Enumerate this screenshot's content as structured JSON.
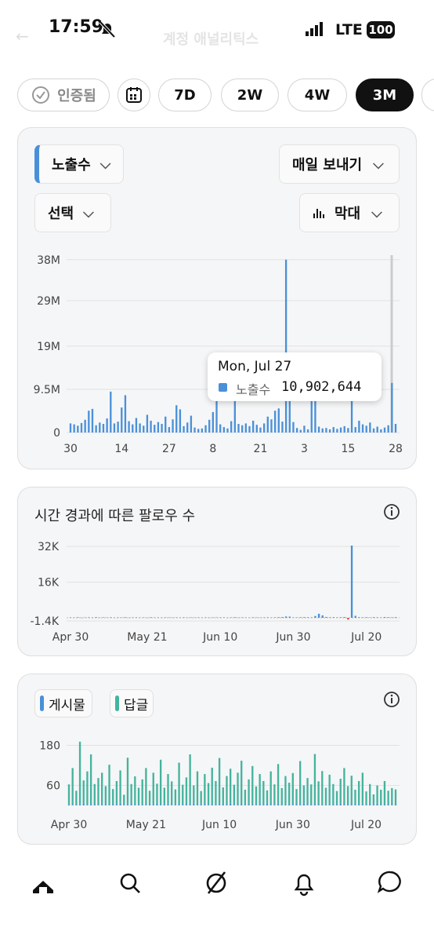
{
  "status_bar": {
    "time": "17:59",
    "network": "LTE",
    "battery": "100"
  },
  "header": {
    "title": "계정 애널리틱스"
  },
  "filters": {
    "verified": "인증됨",
    "ranges": [
      "7D",
      "2W",
      "4W",
      "3M"
    ]
  },
  "controls": {
    "metric": "노출수",
    "export": "매일 보내기",
    "select": "선택",
    "chart_kind": "막대"
  },
  "tooltip": {
    "date": "Mon, Jul 27",
    "series": "노출수",
    "value": "10,902,644"
  },
  "chart_data": [
    {
      "type": "bar",
      "grid": true,
      "categories": [
        "30",
        null,
        null,
        null,
        null,
        null,
        null,
        null,
        null,
        null,
        null,
        null,
        null,
        null,
        "14",
        null,
        null,
        null,
        null,
        null,
        null,
        null,
        null,
        null,
        null,
        null,
        null,
        "27",
        null,
        null,
        null,
        null,
        null,
        null,
        null,
        null,
        null,
        null,
        null,
        "8",
        null,
        null,
        null,
        null,
        null,
        null,
        null,
        null,
        null,
        null,
        null,
        null,
        "21",
        null,
        null,
        null,
        null,
        null,
        null,
        null,
        null,
        null,
        null,
        null,
        "3",
        null,
        null,
        null,
        null,
        null,
        null,
        null,
        null,
        null,
        null,
        null,
        "15",
        null,
        null,
        null,
        null,
        null,
        null,
        null,
        null,
        null,
        null,
        null,
        null,
        "28"
      ],
      "series": [
        {
          "name": "노출수",
          "color": "#4a90d9",
          "values": [
            2000000,
            1800000,
            1500000,
            2100000,
            2800000,
            4800000,
            5200000,
            1600000,
            2200000,
            1900000,
            3100000,
            9000000,
            2000000,
            2400000,
            5500000,
            8200000,
            2500000,
            1800000,
            3200000,
            2000000,
            1500000,
            3900000,
            2600000,
            1700000,
            2300000,
            1900000,
            3500000,
            1200000,
            2900000,
            6000000,
            5100000,
            1400000,
            2200000,
            3700000,
            1100000,
            800000,
            900000,
            1600000,
            2800000,
            4500000,
            7200000,
            1800000,
            1200000,
            900000,
            2500000,
            9000000,
            1900000,
            1600000,
            2000000,
            1400000,
            2600000,
            1700000,
            1100000,
            2000000,
            3500000,
            2900000,
            4800000,
            5300000,
            2400000,
            38000000,
            8100000,
            2300000,
            1000000,
            600000,
            1500000,
            700000,
            7500000,
            6900000,
            1300000,
            900000,
            1000000,
            700000,
            1200000,
            800000,
            1100000,
            1400000,
            1000000,
            9300000,
            1200000,
            2600000,
            1800000,
            1500000,
            2200000,
            900000,
            1300000,
            700000,
            1100000,
            1600000,
            10902644,
            1900000
          ]
        }
      ],
      "ylim": [
        0,
        39000000
      ],
      "yticks": [
        0,
        {
          "value": 9500000,
          "label": "9.5M"
        },
        {
          "value": 19000000,
          "label": "19M"
        },
        {
          "value": 29000000,
          "label": "29M"
        },
        {
          "value": 38000000,
          "label": "38M"
        }
      ]
    },
    {
      "type": "bar",
      "title": "시간 경과에 따른 팔로우 수",
      "grid": true,
      "negative_color": "#e0443a",
      "categories": [
        "Apr 30",
        null,
        null,
        null,
        null,
        null,
        null,
        null,
        null,
        null,
        null,
        null,
        null,
        null,
        null,
        null,
        null,
        null,
        null,
        null,
        null,
        "May 21",
        null,
        null,
        null,
        null,
        null,
        null,
        null,
        null,
        null,
        null,
        null,
        null,
        null,
        null,
        null,
        null,
        null,
        null,
        null,
        "Jun 10",
        null,
        null,
        null,
        null,
        null,
        null,
        null,
        null,
        null,
        null,
        null,
        null,
        null,
        null,
        null,
        null,
        null,
        null,
        null,
        "Jun 30",
        null,
        null,
        null,
        null,
        null,
        null,
        null,
        null,
        null,
        null,
        null,
        null,
        null,
        null,
        null,
        null,
        null,
        null,
        null,
        "Jul 20",
        null,
        null,
        null,
        null,
        null,
        null,
        null,
        null
      ],
      "series": [
        {
          "name": "팔로우",
          "color": "#4a90d9",
          "values": [
            200,
            150,
            250,
            100,
            180,
            220,
            150,
            300,
            120,
            200,
            160,
            240,
            130,
            200,
            170,
            250,
            110,
            190,
            220,
            140,
            180,
            120,
            260,
            150,
            200,
            130,
            210,
            170,
            140,
            190,
            150,
            230,
            120,
            180,
            160,
            200,
            140,
            220,
            130,
            170,
            190,
            150,
            210,
            120,
            180,
            250,
            140,
            200,
            160,
            130,
            220,
            170,
            150,
            190,
            240,
            160,
            200,
            280,
            350,
            600,
            550,
            200,
            180,
            240,
            300,
            260,
            220,
            800,
            1800,
            1100,
            400,
            250,
            300,
            200,
            260,
            350,
            -800,
            32400,
            900,
            300,
            220,
            260,
            180,
            300,
            240,
            200,
            350,
            280,
            220,
            300
          ]
        }
      ],
      "ylim": [
        -1400,
        32400
      ],
      "yticks": [
        {
          "value": -1400,
          "label": "-1.4K"
        },
        {
          "value": 16000,
          "label": "16K"
        },
        {
          "value": 32000,
          "label": "32K"
        }
      ]
    },
    {
      "type": "bar",
      "stacked": true,
      "grid": true,
      "categories": [
        "Apr 30",
        null,
        null,
        null,
        null,
        null,
        null,
        null,
        null,
        null,
        null,
        null,
        null,
        null,
        null,
        null,
        null,
        null,
        null,
        null,
        null,
        "May 21",
        null,
        null,
        null,
        null,
        null,
        null,
        null,
        null,
        null,
        null,
        null,
        null,
        null,
        null,
        null,
        null,
        null,
        null,
        null,
        "Jun 10",
        null,
        null,
        null,
        null,
        null,
        null,
        null,
        null,
        null,
        null,
        null,
        null,
        null,
        null,
        null,
        null,
        null,
        null,
        null,
        "Jun 30",
        null,
        null,
        null,
        null,
        null,
        null,
        null,
        null,
        null,
        null,
        null,
        null,
        null,
        null,
        null,
        null,
        null,
        null,
        null,
        "Jul 20",
        null,
        null,
        null,
        null,
        null,
        null,
        null,
        null
      ],
      "series": [
        {
          "name": "게시물",
          "color": "#4a90d9",
          "values": [
            3,
            2,
            4,
            3,
            5,
            2,
            3,
            4,
            2,
            3,
            3,
            2,
            4,
            3,
            5,
            2,
            3,
            4,
            2,
            3,
            3,
            2,
            4,
            3,
            5,
            2,
            3,
            4,
            2,
            3,
            3,
            2,
            4,
            3,
            5,
            2,
            3,
            4,
            2,
            3,
            3,
            2,
            4,
            3,
            5,
            2,
            3,
            4,
            2,
            3,
            3,
            2,
            4,
            3,
            5,
            2,
            3,
            4,
            2,
            3,
            3,
            2,
            4,
            3,
            5,
            2,
            3,
            4,
            2,
            3,
            3,
            2,
            4,
            3,
            5,
            2,
            3,
            4,
            2,
            3,
            3,
            2,
            4,
            3,
            5,
            2,
            3,
            4,
            2,
            3
          ]
        },
        {
          "name": "답글",
          "color": "#45b39d",
          "values": [
            60,
            110,
            40,
            188,
            70,
            100,
            150,
            60,
            80,
            95,
            55,
            120,
            45,
            70,
            100,
            30,
            140,
            60,
            85,
            50,
            75,
            110,
            40,
            95,
            60,
            135,
            50,
            90,
            70,
            45,
            125,
            60,
            80,
            150,
            55,
            100,
            40,
            90,
            65,
            110,
            70,
            140,
            50,
            85,
            105,
            60,
            95,
            130,
            45,
            75,
            115,
            55,
            90,
            70,
            40,
            100,
            60,
            120,
            50,
            85,
            65,
            95,
            45,
            130,
            55,
            80,
            60,
            150,
            70,
            100,
            50,
            90,
            60,
            40,
            75,
            110,
            55,
            85,
            45,
            70,
            95,
            40,
            60,
            30,
            55,
            45,
            70,
            40,
            50,
            45
          ]
        }
      ],
      "ylim": [
        0,
        200
      ],
      "yticks": [
        60,
        180
      ]
    }
  ]
}
